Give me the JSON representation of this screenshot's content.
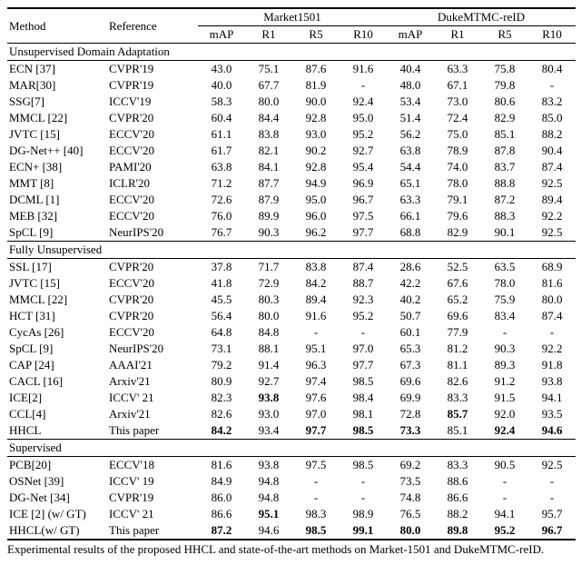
{
  "caption": "Experimental results of the proposed HHCL and state-of-the-art methods on Market-1501 and DukeMTMC-reID.",
  "header": {
    "method": "Method",
    "reference": "Reference",
    "group1": "Market1501",
    "group2": "DukeMTMC-reID",
    "cols": [
      "mAP",
      "R1",
      "R5",
      "R10"
    ]
  },
  "sections": [
    {
      "title": "Unsupervised Domain Adaptation",
      "rows": [
        {
          "m": "ECN [37]",
          "r": "CVPR'19",
          "a": [
            "43.0",
            "75.1",
            "87.6",
            "91.6"
          ],
          "b": [
            "40.4",
            "63.3",
            "75.8",
            "80.4"
          ]
        },
        {
          "m": "MAR[30]",
          "r": "CVPR'19",
          "a": [
            "40.0",
            "67.7",
            "81.9",
            "-"
          ],
          "b": [
            "48.0",
            "67.1",
            "79.8",
            "-"
          ]
        },
        {
          "m": "SSG[7]",
          "r": "ICCV'19",
          "a": [
            "58.3",
            "80.0",
            "90.0",
            "92.4"
          ],
          "b": [
            "53.4",
            "73.0",
            "80.6",
            "83.2"
          ]
        },
        {
          "m": "MMCL [22]",
          "r": "CVPR'20",
          "a": [
            "60.4",
            "84.4",
            "92.8",
            "95.0"
          ],
          "b": [
            "51.4",
            "72.4",
            "82.9",
            "85.0"
          ]
        },
        {
          "m": "JVTC [15]",
          "r": "ECCV'20",
          "a": [
            "61.1",
            "83.8",
            "93.0",
            "95.2"
          ],
          "b": [
            "56.2",
            "75.0",
            "85.1",
            "88.2"
          ]
        },
        {
          "m": "DG-Net++ [40]",
          "r": "ECCV'20",
          "a": [
            "61.7",
            "82.1",
            "90.2",
            "92.7"
          ],
          "b": [
            "63.8",
            "78.9",
            "87.8",
            "90.4"
          ]
        },
        {
          "m": "ECN+ [38]",
          "r": "PAMI'20",
          "a": [
            "63.8",
            "84.1",
            "92.8",
            "95.4"
          ],
          "b": [
            "54.4",
            "74.0",
            "83.7",
            "87.4"
          ]
        },
        {
          "m": "MMT [8]",
          "r": "ICLR'20",
          "a": [
            "71.2",
            "87.7",
            "94.9",
            "96.9"
          ],
          "b": [
            "65.1",
            "78.0",
            "88.8",
            "92.5"
          ]
        },
        {
          "m": "DCML [1]",
          "r": "ECCV'20",
          "a": [
            "72.6",
            "87.9",
            "95.0",
            "96.7"
          ],
          "b": [
            "63.3",
            "79.1",
            "87.2",
            "89.4"
          ]
        },
        {
          "m": "MEB [32]",
          "r": "ECCV'20",
          "a": [
            "76.0",
            "89.9",
            "96.0",
            "97.5"
          ],
          "b": [
            "66.1",
            "79.6",
            "88.3",
            "92.2"
          ]
        },
        {
          "m": "SpCL [9]",
          "r": "NeurIPS'20",
          "a": [
            "76.7",
            "90.3",
            "96.2",
            "97.7"
          ],
          "b": [
            "68.8",
            "82.9",
            "90.1",
            "92.5"
          ]
        }
      ]
    },
    {
      "title": "Fully Unsupervised",
      "rows": [
        {
          "m": "SSL [17]",
          "r": "CVPR'20",
          "a": [
            "37.8",
            "71.7",
            "83.8",
            "87.4"
          ],
          "b": [
            "28.6",
            "52.5",
            "63.5",
            "68.9"
          ]
        },
        {
          "m": "JVTC [15]",
          "r": "ECCV'20",
          "a": [
            "41.8",
            "72.9",
            "84.2",
            "88.7"
          ],
          "b": [
            "42.2",
            "67.6",
            "78.0",
            "81.6"
          ]
        },
        {
          "m": "MMCL [22]",
          "r": "CVPR'20",
          "a": [
            "45.5",
            "80.3",
            "89.4",
            "92.3"
          ],
          "b": [
            "40.2",
            "65.2",
            "75.9",
            "80.0"
          ]
        },
        {
          "m": "HCT [31]",
          "r": "CVPR'20",
          "a": [
            "56.4",
            "80.0",
            "91.6",
            "95.2"
          ],
          "b": [
            "50.7",
            "69.6",
            "83.4",
            "87.4"
          ]
        },
        {
          "m": "CycAs [26]",
          "r": "ECCV'20",
          "a": [
            "64.8",
            "84.8",
            "-",
            "-"
          ],
          "b": [
            "60.1",
            "77.9",
            "-",
            "-"
          ]
        },
        {
          "m": "SpCL [9]",
          "r": "NeurIPS'20",
          "a": [
            "73.1",
            "88.1",
            "95.1",
            "97.0"
          ],
          "b": [
            "65.3",
            "81.2",
            "90.3",
            "92.2"
          ]
        },
        {
          "m": "CAP [24]",
          "r": "AAAI'21",
          "a": [
            "79.2",
            "91.4",
            "96.3",
            "97.7"
          ],
          "b": [
            "67.3",
            "81.1",
            "89.3",
            "91.8"
          ]
        },
        {
          "m": "CACL [16]",
          "r": "Arxiv'21",
          "a": [
            "80.9",
            "92.7",
            "97.4",
            "98.5"
          ],
          "b": [
            "69.6",
            "82.6",
            "91.2",
            "93.8"
          ]
        },
        {
          "m": "ICE[2]",
          "r": "ICCV' 21",
          "a": [
            "82.3",
            "93.8",
            "97.6",
            "98.4"
          ],
          "b": [
            "69.9",
            "83.3",
            "91.5",
            "94.1"
          ],
          "ab": [
            false,
            true,
            false,
            false
          ],
          "bb": [
            false,
            false,
            false,
            false
          ]
        },
        {
          "m": "CCL[4]",
          "r": "Arxiv'21",
          "a": [
            "82.6",
            "93.0",
            "97.0",
            "98.1"
          ],
          "b": [
            "72.8",
            "85.7",
            "92.0",
            "93.5"
          ],
          "ab": [
            false,
            false,
            false,
            false
          ],
          "bb": [
            false,
            true,
            false,
            false
          ]
        },
        {
          "m": "HHCL",
          "r": "This paper",
          "a": [
            "84.2",
            "93.4",
            "97.7",
            "98.5"
          ],
          "b": [
            "73.3",
            "85.1",
            "92.4",
            "94.6"
          ],
          "ab": [
            true,
            false,
            true,
            true
          ],
          "bb": [
            true,
            false,
            true,
            true
          ]
        }
      ]
    },
    {
      "title": "Supervised",
      "rows": [
        {
          "m": "PCB[20]",
          "r": "ECCV'18",
          "a": [
            "81.6",
            "93.8",
            "97.5",
            "98.5"
          ],
          "b": [
            "69.2",
            "83.3",
            "90.5",
            "92.5"
          ]
        },
        {
          "m": "OSNet [39]",
          "r": "ICCV' 19",
          "a": [
            "84.9",
            "94.8",
            "-",
            "-"
          ],
          "b": [
            "73.5",
            "88.6",
            "-",
            "-"
          ]
        },
        {
          "m": "DG-Net [34]",
          "r": "CVPR'19",
          "a": [
            "86.0",
            "94.8",
            "-",
            "-"
          ],
          "b": [
            "74.8",
            "86.6",
            "-",
            "-"
          ]
        },
        {
          "m": "ICE [2] (w/ GT)",
          "r": "ICCV' 21",
          "a": [
            "86.6",
            "95.1",
            "98.3",
            "98.9"
          ],
          "b": [
            "76.5",
            "88.2",
            "94.1",
            "95.7"
          ],
          "ab": [
            false,
            true,
            false,
            false
          ],
          "bb": [
            false,
            false,
            false,
            false
          ]
        },
        {
          "m": "HHCL(w/ GT)",
          "r": "This paper",
          "a": [
            "87.2",
            "94.6",
            "98.5",
            "99.1"
          ],
          "b": [
            "80.0",
            "89.8",
            "95.2",
            "96.7"
          ],
          "ab": [
            true,
            false,
            true,
            true
          ],
          "bb": [
            true,
            true,
            true,
            true
          ]
        }
      ]
    }
  ]
}
